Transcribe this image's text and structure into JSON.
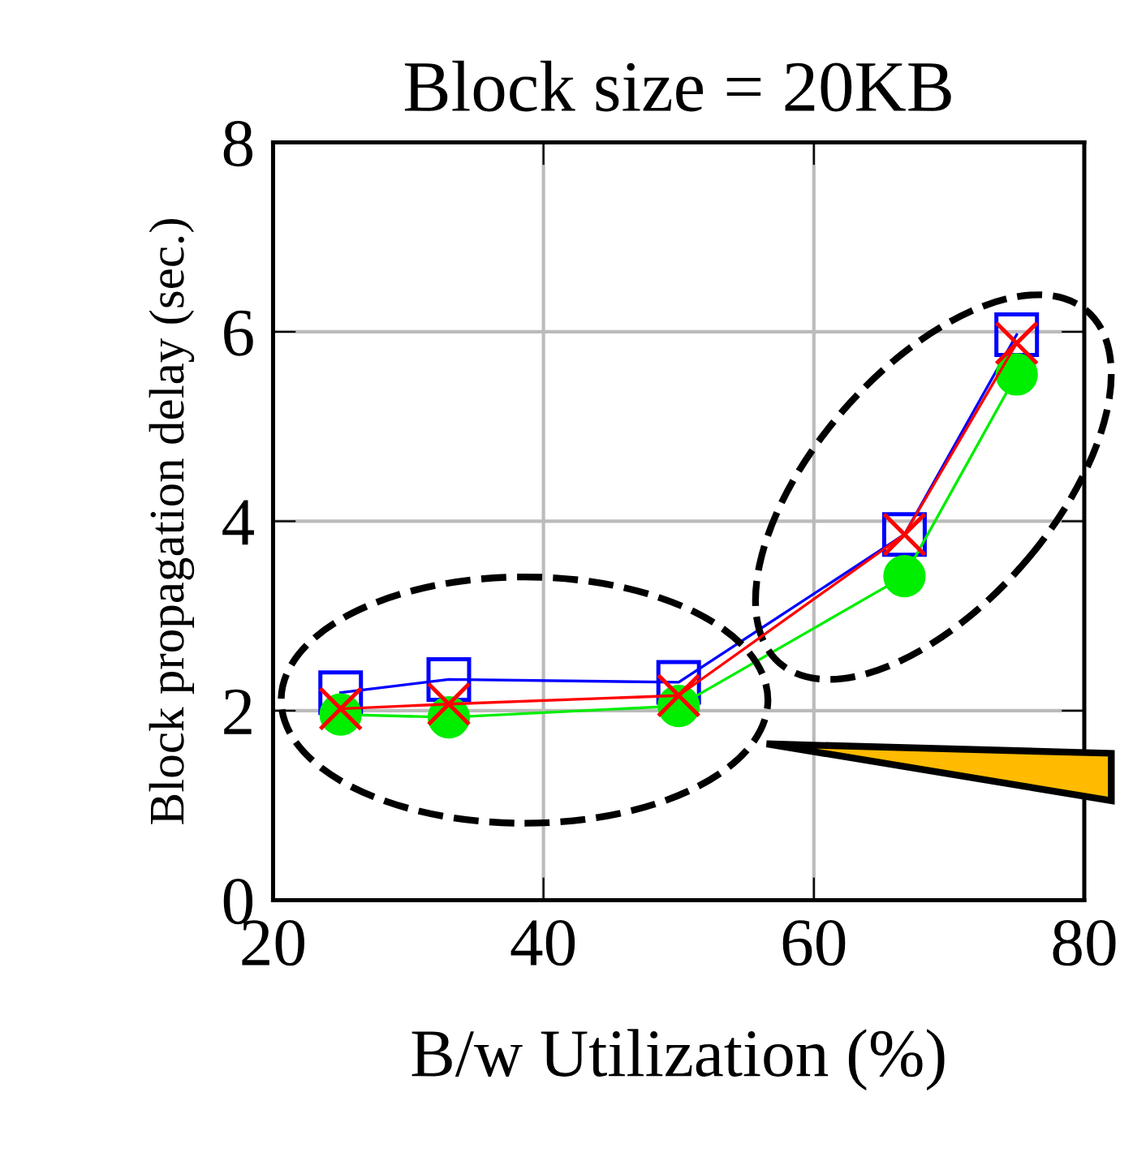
{
  "chart_data": {
    "type": "line",
    "title": "Block size = 20KB",
    "xlabel": "B/w Utilization (%)",
    "ylabel": "Block propagation delay (sec.)",
    "x": [
      25,
      33,
      50,
      66.7,
      75
    ],
    "series": [
      {
        "color": "#0000ff",
        "marker": "square",
        "values": [
          2.19,
          2.33,
          2.3,
          3.86,
          5.97
        ]
      },
      {
        "color": "#ff0000",
        "marker": "cross",
        "values": [
          2.02,
          2.07,
          2.16,
          3.86,
          5.88
        ]
      },
      {
        "color": "#00ee00",
        "marker": "circle",
        "values": [
          1.96,
          1.93,
          2.05,
          3.42,
          5.55
        ]
      }
    ],
    "xlim": [
      20,
      80
    ],
    "xticks": [
      20,
      40,
      60,
      80
    ],
    "ylim": [
      0,
      8
    ],
    "yticks": [
      0,
      2,
      4,
      6,
      8
    ],
    "grid": true,
    "line_style": "solid"
  }
}
